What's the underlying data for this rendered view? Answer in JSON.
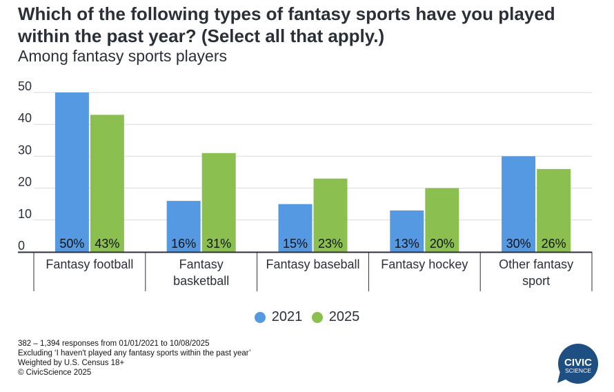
{
  "title": "Which of the following types of fantasy sports have you played within the past year? (Select all that apply.)",
  "subtitle": "Among fantasy sports players",
  "chart_data": {
    "type": "bar",
    "title": "Which of the following types of fantasy sports have you played within the past year? (Select all that apply.)",
    "subtitle": "Among fantasy sports players",
    "xlabel": "",
    "ylabel": "",
    "ylim": [
      0,
      50
    ],
    "yticks": [
      0,
      10,
      20,
      30,
      40,
      50
    ],
    "grid": true,
    "legend_position": "bottom-center",
    "categories": [
      "Fantasy football",
      "Fantasy basketball",
      "Fantasy baseball",
      "Fantasy hockey",
      "Other fantasy sport"
    ],
    "category_label_lines": [
      [
        "Fantasy football"
      ],
      [
        "Fantasy",
        "basketball"
      ],
      [
        "Fantasy baseball"
      ],
      [
        "Fantasy hockey"
      ],
      [
        "Other fantasy",
        "sport"
      ]
    ],
    "series": [
      {
        "name": "2021",
        "color": "#5599e3",
        "values": [
          50,
          16,
          15,
          13,
          30
        ],
        "labels": [
          "50%",
          "16%",
          "15%",
          "13%",
          "30%"
        ]
      },
      {
        "name": "2025",
        "color": "#8bc050",
        "values": [
          43,
          31,
          23,
          20,
          26
        ],
        "labels": [
          "43%",
          "31%",
          "23%",
          "20%",
          "26%"
        ]
      }
    ]
  },
  "legend": [
    {
      "label": "2021",
      "color": "#5599e3"
    },
    {
      "label": "2025",
      "color": "#8bc050"
    }
  ],
  "footnotes": [
    "382 – 1,394 responses from 01/01/2021 to 10/08/2025",
    "Excluding ‘I haven't played any fantasy sports within the past year’",
    "Weighted by U.S. Census 18+",
    "© CivicScience 2025"
  ],
  "logo": {
    "line1": "CIVIC",
    "line2": "SCIENCE",
    "color": "#1d4f82"
  }
}
